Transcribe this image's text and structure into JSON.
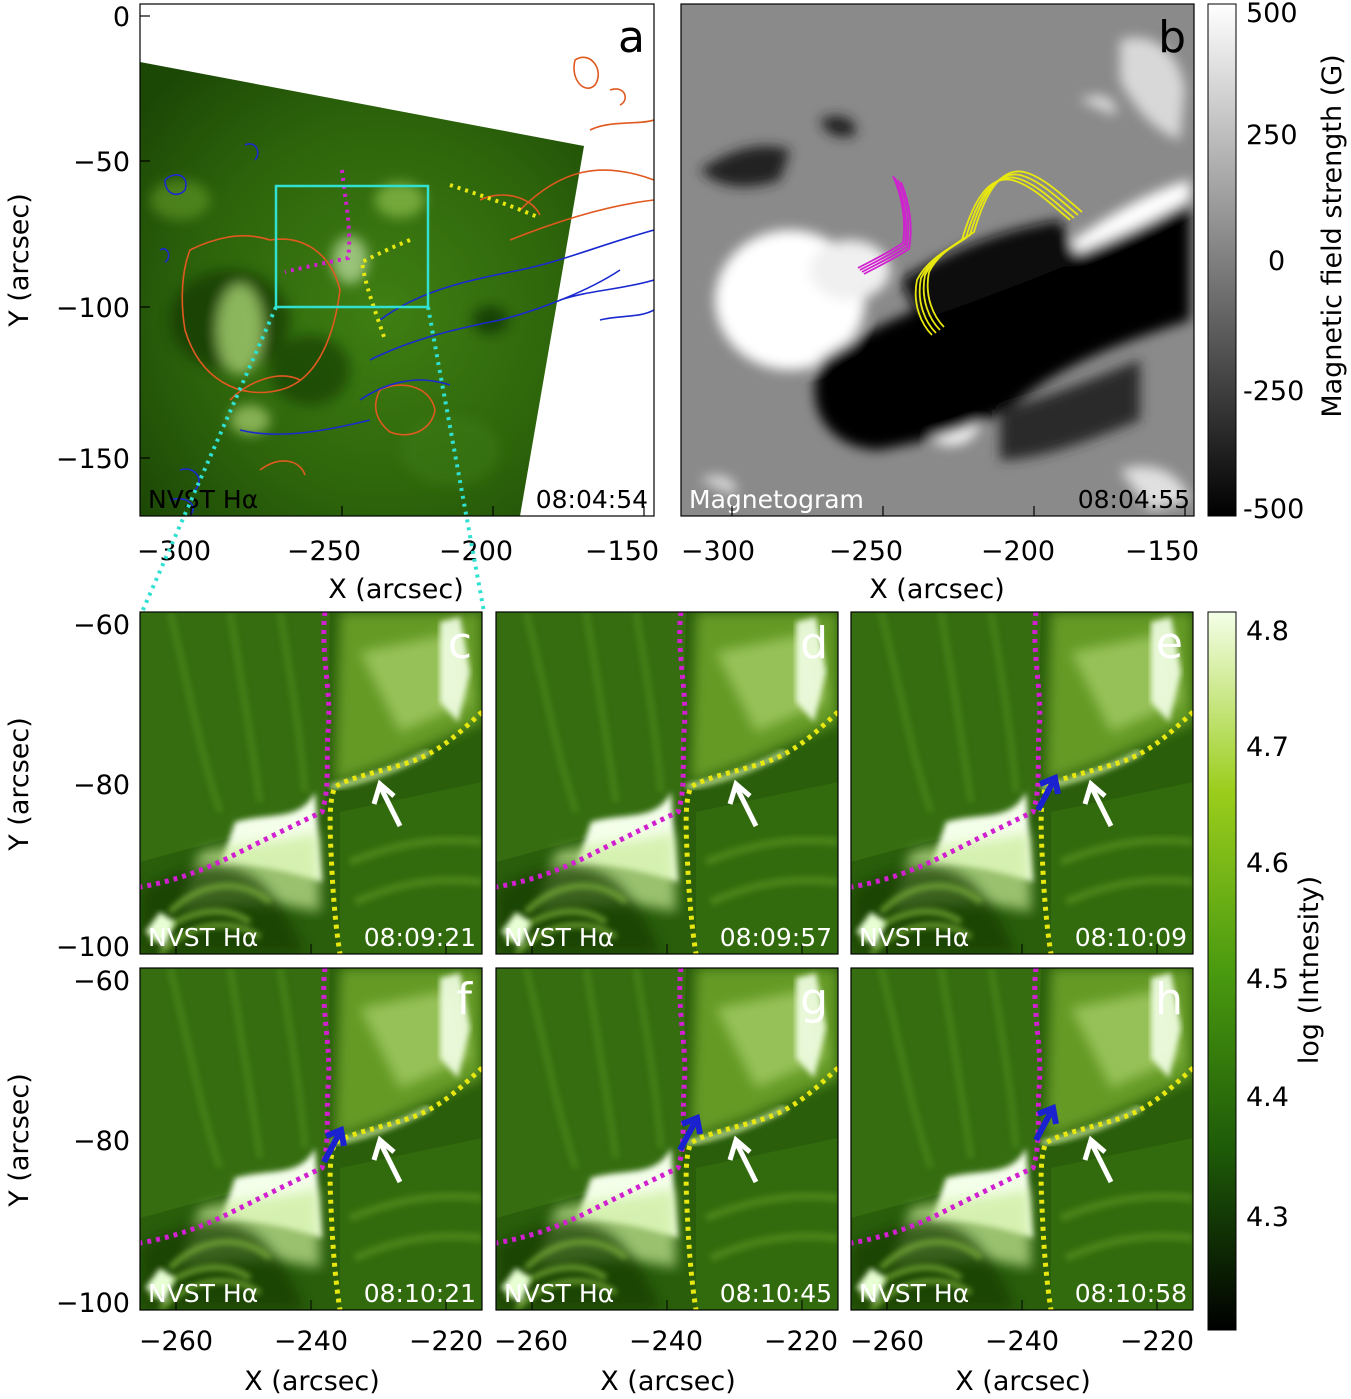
{
  "colors": {
    "halpha_dark": "#0b2200",
    "halpha_mid": "#2f6a0c",
    "halpha_bright": "#f0ffe0",
    "magenta_line": "#d020d0",
    "yellow_line": "#e8e810",
    "cyan_box": "#30e0d0",
    "contour_orange": "#e05a20",
    "contour_blue": "#1a2ad0",
    "arrow_white": "#ffffff",
    "arrow_blue": "#1a22d0"
  },
  "panels": {
    "a": {
      "letter": "a",
      "instrument": "NVST  Hα",
      "time": "08:04:54",
      "xlabel": "X (arcsec)",
      "ylabel": "Y (arcsec)",
      "xticks": [
        "−300",
        "−250",
        "−200",
        "−150"
      ],
      "yticks": [
        "0",
        "−50",
        "−100",
        "−150"
      ],
      "xrange": [
        -318,
        -148
      ],
      "yrange": [
        -170,
        0
      ],
      "box": {
        "x": [
          -265,
          -215
        ],
        "y": [
          -100,
          -60
        ]
      }
    },
    "b": {
      "letter": "b",
      "label": "Magnetogram",
      "time": "08:04:55",
      "xlabel": "X (arcsec)",
      "xticks": [
        "−300",
        "−250",
        "−200",
        "−150"
      ],
      "xrange": [
        -318,
        -148
      ],
      "colorbar": {
        "title": "Magnetic field strength (G)",
        "ticks": [
          "500",
          "250",
          "0",
          "-250",
          "-500"
        ],
        "range": [
          -500,
          500
        ]
      }
    },
    "zoom": {
      "instrument": "NVST  Hα",
      "xlabel": "X (arcsec)",
      "ylabel": "Y (arcsec)",
      "xticks": [
        "−260",
        "−240",
        "−220"
      ],
      "yticks": [
        "−60",
        "−80",
        "−100"
      ],
      "xrange": [
        -267,
        -215
      ],
      "yrange": [
        -101,
        -59
      ],
      "colorbar": {
        "title": "log (Intnesity)",
        "ticks": [
          "4.8",
          "4.7",
          "4.6",
          "4.5",
          "4.4",
          "4.3"
        ]
      },
      "items": [
        {
          "letter": "c",
          "time": "08:09:21",
          "blue_arrow": false
        },
        {
          "letter": "d",
          "time": "08:09:57",
          "blue_arrow": false
        },
        {
          "letter": "e",
          "time": "08:10:09",
          "blue_arrow": true
        },
        {
          "letter": "f",
          "time": "08:10:21",
          "blue_arrow": true
        },
        {
          "letter": "g",
          "time": "08:10:45",
          "blue_arrow": true
        },
        {
          "letter": "h",
          "time": "08:10:58",
          "blue_arrow": true
        }
      ]
    }
  }
}
